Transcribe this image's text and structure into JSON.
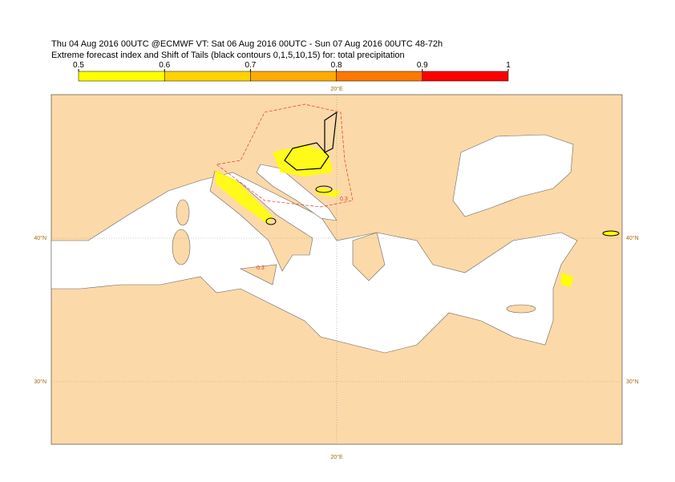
{
  "header": {
    "line1": "Thu 04 Aug 2016 00UTC @ECMWF VT: Sat 06 Aug 2016 00UTC - Sun 07 Aug 2016 00UTC  48-72h",
    "line2": "Extreme forecast index and Shift of Tails (black contours 0,1,5,10,15) for: total precipitation"
  },
  "colorbar": {
    "ticks": [
      0.5,
      0.6,
      0.7,
      0.8,
      0.9,
      1
    ],
    "colors": [
      "#ffff00",
      "#ffd200",
      "#ffaa00",
      "#ff7800",
      "#ff0000"
    ]
  },
  "map": {
    "lon_label_top": "20°E",
    "lon_label_bottom": "20°E",
    "lat_labels_left": [
      "40°N",
      "30°N"
    ],
    "lat_labels_right": [
      "40°N",
      "30°N"
    ],
    "contour_labels": [
      "0.3",
      "0.3"
    ]
  }
}
